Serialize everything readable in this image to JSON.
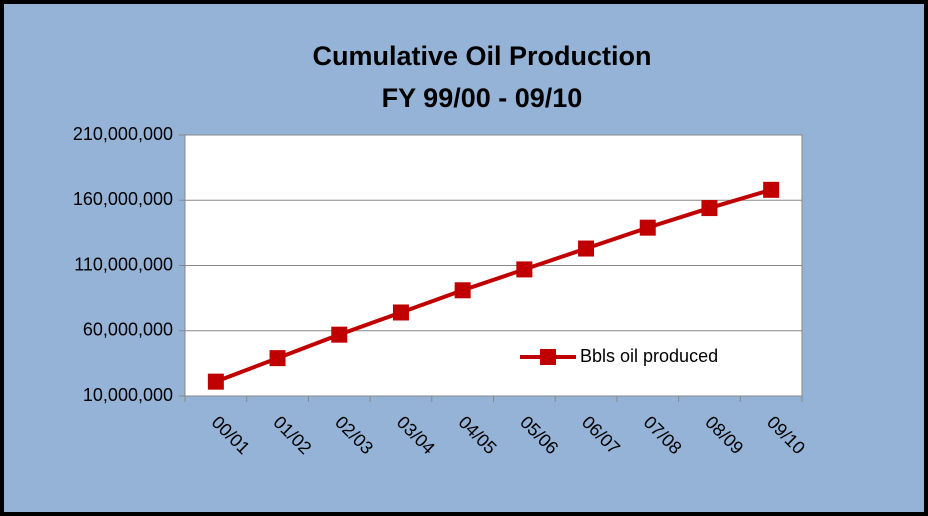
{
  "chart_data": {
    "type": "line",
    "title": "Cumulative Oil Production",
    "subtitle": "FY 99/00 - 09/10",
    "categories": [
      "00/01",
      "01/02",
      "02/03",
      "03/04",
      "04/05",
      "05/06",
      "06/07",
      "07/08",
      "08/09",
      "09/10"
    ],
    "series": [
      {
        "name": "Bbls oil produced",
        "color": "#c00000",
        "values": [
          21000000,
          39000000,
          57000000,
          74000000,
          91000000,
          107000000,
          123000000,
          139000000,
          154000000,
          168000000
        ]
      }
    ],
    "ylim": [
      10000000,
      210000000
    ],
    "yticks": [
      {
        "value": 10000000,
        "label": "10,000,000"
      },
      {
        "value": 60000000,
        "label": "60,000,000"
      },
      {
        "value": 110000000,
        "label": "110,000,000"
      },
      {
        "value": 160000000,
        "label": "160,000,000"
      },
      {
        "value": 210000000,
        "label": "210,000,000"
      }
    ],
    "grid": true,
    "legend": "lower right"
  }
}
